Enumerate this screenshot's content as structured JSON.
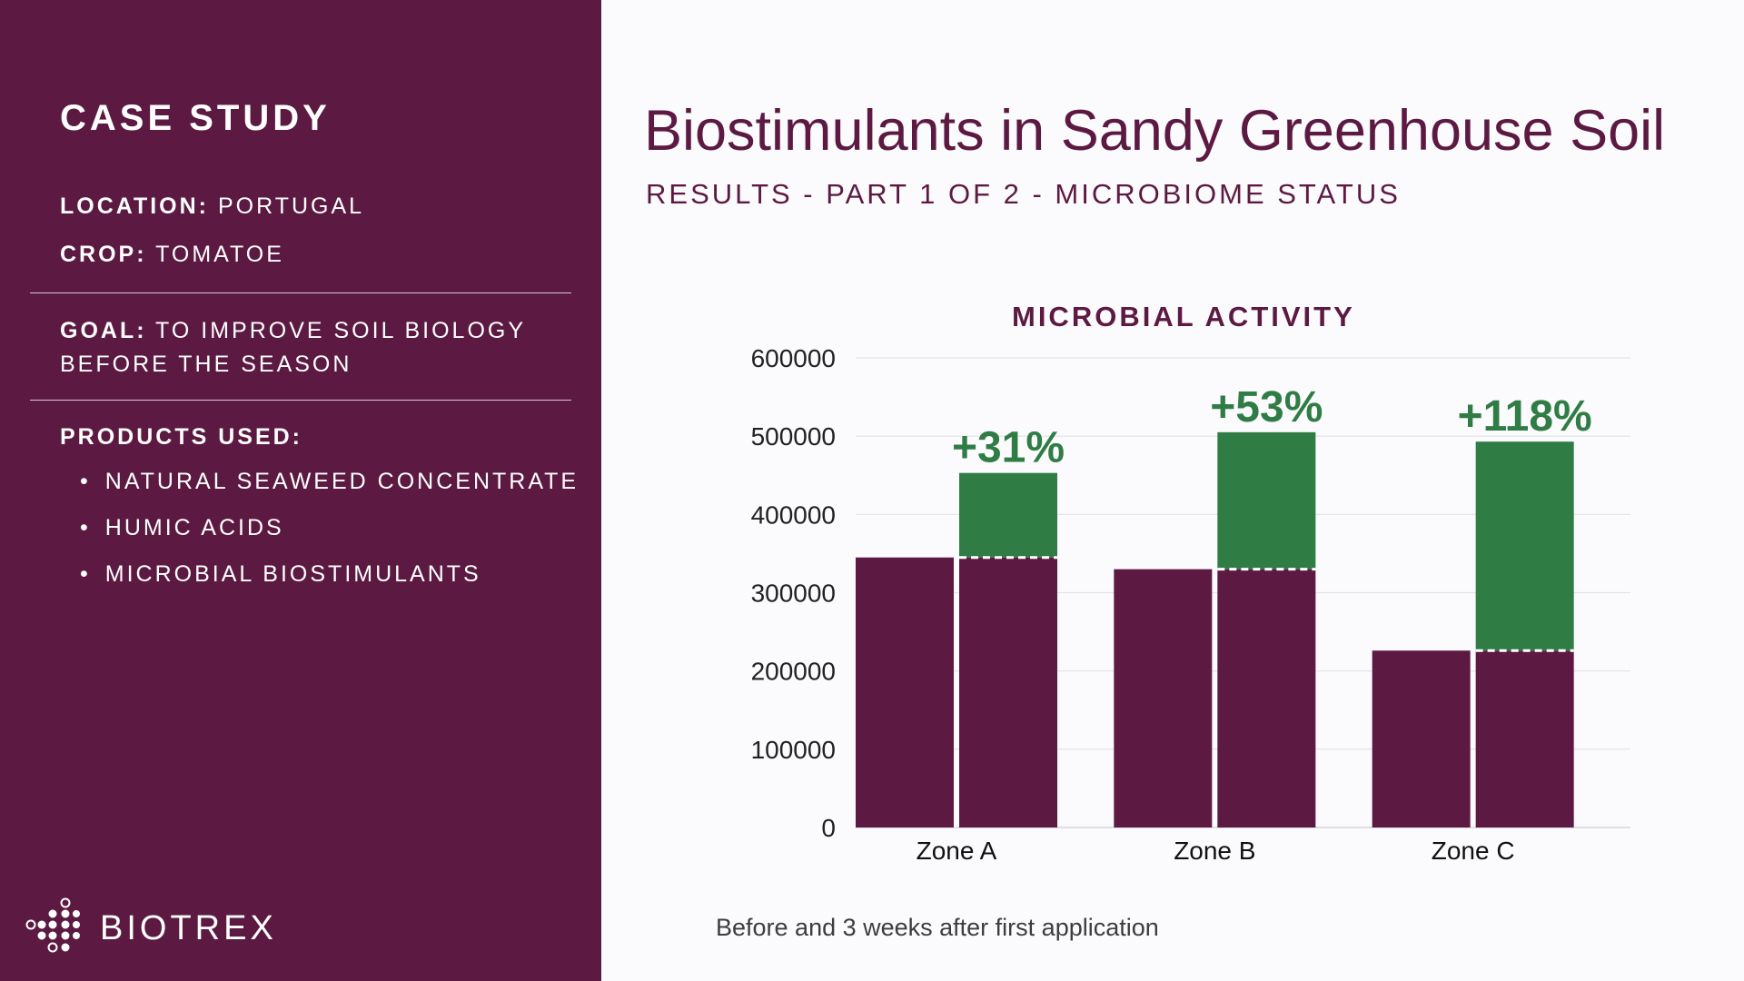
{
  "sidebar": {
    "case_title": "CASE STUDY",
    "location_label": "LOCATION:",
    "location_value": "PORTUGAL",
    "crop_label": "CROP:",
    "crop_value": "TOMATOE",
    "goal_label": "GOAL:",
    "goal_value": "TO IMPROVE SOIL BIOLOGY BEFORE THE SEASON",
    "products_label": "PRODUCTS USED:",
    "products": [
      "NATURAL SEAWEED CONCENTRATE",
      "HUMIC ACIDS",
      "MICROBIAL BIOSTIMULANTS"
    ],
    "logo_text": "BIOTREX"
  },
  "header": {
    "title": "Biostimulants in Sandy Greenhouse Soil",
    "subtitle": "RESULTS - PART 1 OF 2 - MICROBIOME STATUS"
  },
  "caption": "Before and 3 weeks after first application",
  "colors": {
    "brand": "#5c1a42",
    "increase": "#2f7d45",
    "background": "#fbfafd"
  },
  "chart_data": {
    "type": "bar",
    "title": "MICROBIAL ACTIVITY",
    "categories": [
      "Zone A",
      "Zone B",
      "Zone C"
    ],
    "series": [
      {
        "values": [
          345000,
          330000,
          226000
        ]
      },
      {
        "values": [
          453000,
          505000,
          493000
        ]
      }
    ],
    "increase_labels": [
      "+31%",
      "+53%",
      "+118%"
    ],
    "ylim": [
      0,
      600000
    ],
    "yticks": [
      0,
      100000,
      200000,
      300000,
      400000,
      500000,
      600000
    ],
    "grid": true,
    "legend": "none"
  }
}
